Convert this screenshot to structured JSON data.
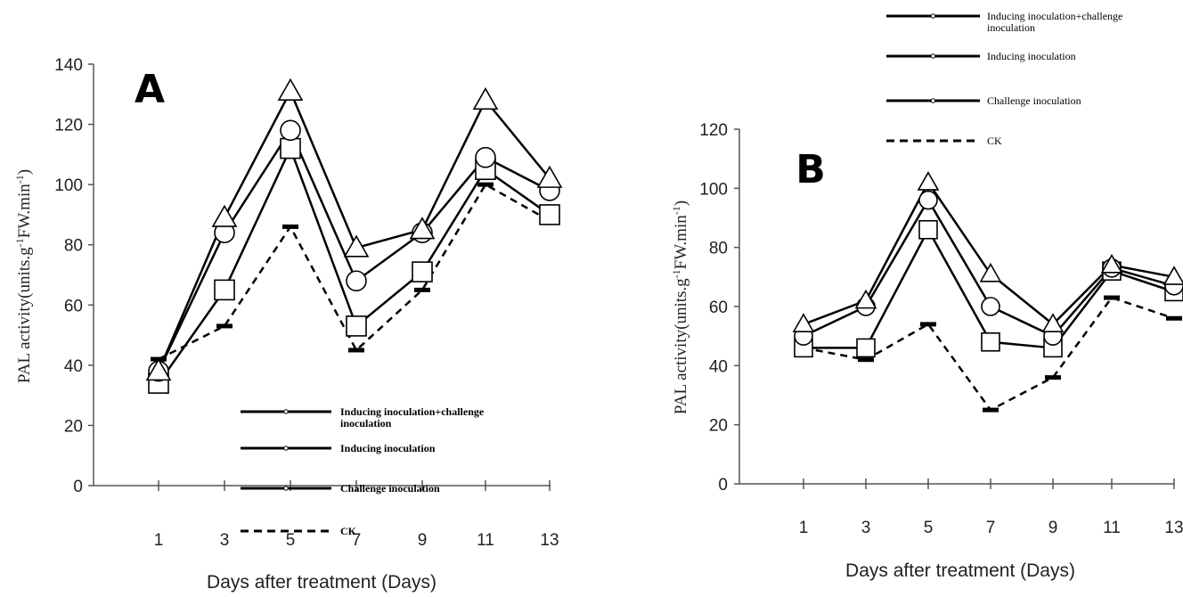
{
  "chart_data": [
    {
      "type": "line",
      "panel_label": "A",
      "xlabel": "Days after treatment (Days)",
      "ylabel": {
        "main": "PAL activity(units.g",
        "sup1": "-1",
        "mid": "FW.min",
        "sup2": "-1",
        "end": ")"
      },
      "x": [
        1,
        3,
        5,
        7,
        9,
        11,
        13
      ],
      "ylim": [
        0,
        140
      ],
      "yticks": [
        0,
        20,
        40,
        60,
        80,
        100,
        120,
        140
      ],
      "grid": false,
      "legend_position": "inside-bottom-right",
      "series": [
        {
          "name": "Inducing inoculation+challenge inoculation",
          "marker": "triangle",
          "dash": false,
          "values": [
            38,
            89,
            131,
            79,
            85,
            128,
            102
          ]
        },
        {
          "name": "Inducing inoculation",
          "marker": "circle",
          "dash": false,
          "values": [
            38,
            84,
            118,
            68,
            84,
            109,
            98
          ]
        },
        {
          "name": "Challenge inoculation",
          "marker": "square",
          "dash": false,
          "values": [
            34,
            65,
            112,
            53,
            71,
            105,
            90
          ]
        },
        {
          "name": "CK",
          "marker": "dash",
          "dash": true,
          "values": [
            42,
            53,
            86,
            45,
            65,
            100,
            88
          ]
        }
      ]
    },
    {
      "type": "line",
      "panel_label": "B",
      "xlabel": "Days after treatment (Days)",
      "ylabel": {
        "main": "PAL activity(units.g",
        "sup1": "-1",
        "mid": "FW.min",
        "sup2": "-1",
        "end": ")"
      },
      "x": [
        1,
        3,
        5,
        7,
        9,
        11,
        13
      ],
      "ylim": [
        0,
        120
      ],
      "yticks": [
        0,
        20,
        40,
        60,
        80,
        100,
        120
      ],
      "grid": false,
      "legend_position": "top-right",
      "series": [
        {
          "name": "Inducing inoculation+challenge inoculation",
          "marker": "triangle",
          "dash": false,
          "values": [
            54,
            62,
            102,
            71,
            54,
            74,
            70
          ]
        },
        {
          "name": "Inducing inoculation",
          "marker": "circle",
          "dash": false,
          "values": [
            50,
            60,
            96,
            60,
            50,
            73,
            67
          ]
        },
        {
          "name": "Challenge inoculation",
          "marker": "square",
          "dash": false,
          "values": [
            46,
            46,
            86,
            48,
            46,
            72,
            65
          ]
        },
        {
          "name": "CK",
          "marker": "dash",
          "dash": true,
          "values": [
            46,
            42,
            54,
            25,
            36,
            63,
            56
          ]
        }
      ]
    }
  ]
}
